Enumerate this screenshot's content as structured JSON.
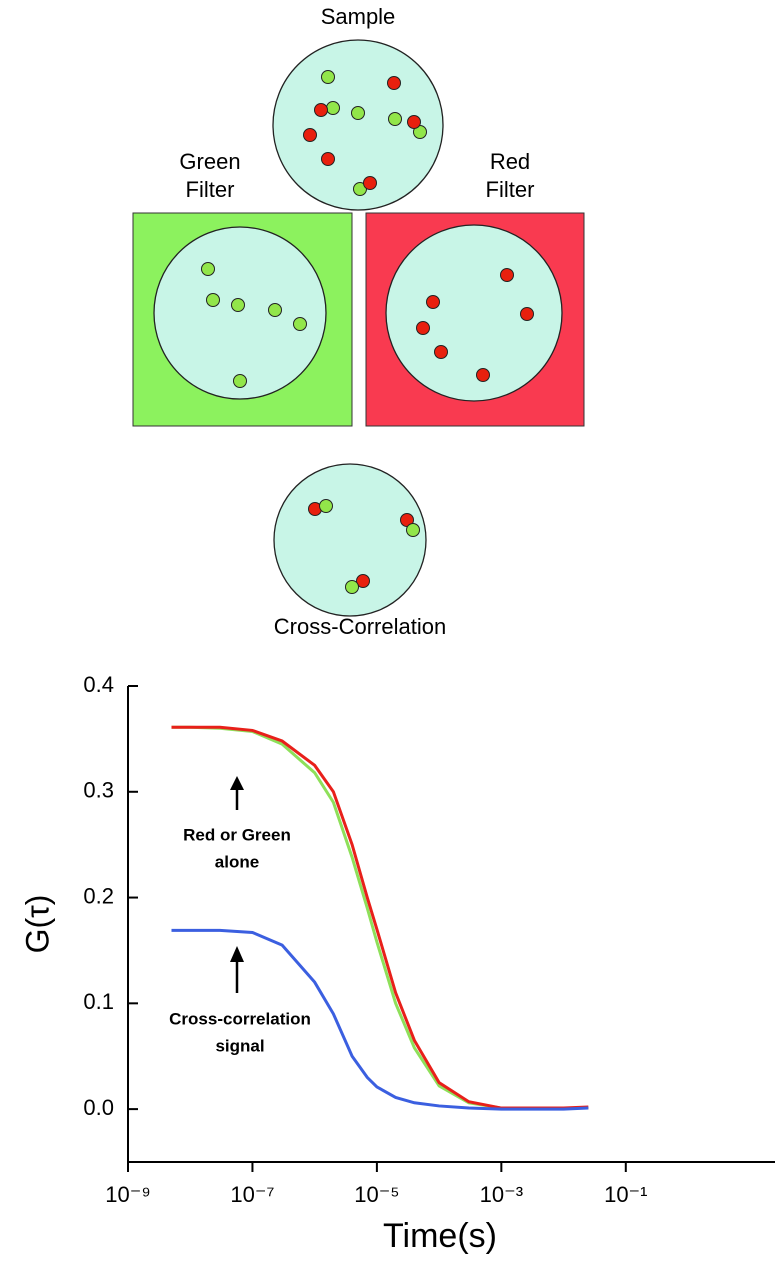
{
  "diagram": {
    "sample": "Sample",
    "green_filter": [
      "Green",
      "Filter"
    ],
    "red_filter": [
      "Red",
      "Filter"
    ],
    "cross_correlation": "Cross-Correlation"
  },
  "chart_data": {
    "type": "line",
    "xscale": "log",
    "xlabel": "Time(s)",
    "ylabel": "G(τ)",
    "xlim": [
      1e-09,
      25
    ],
    "ylim": [
      -0.05,
      0.4
    ],
    "xticks": [
      {
        "value": 1e-09,
        "label": "10⁻⁹"
      },
      {
        "value": 1e-07,
        "label": "10⁻⁷"
      },
      {
        "value": 1e-05,
        "label": "10⁻⁵"
      },
      {
        "value": 0.001,
        "label": "10⁻³"
      },
      {
        "value": 0.1,
        "label": "10⁻¹"
      }
    ],
    "yticks": [
      {
        "value": 0,
        "label": "0.0"
      },
      0.1,
      0.2,
      0.3,
      0.4
    ],
    "x": [
      5e-09,
      1e-08,
      3e-08,
      1e-07,
      3e-07,
      1e-06,
      2e-06,
      4e-06,
      7e-06,
      1e-05,
      2e-05,
      4e-05,
      0.0001,
      0.0003,
      0.001,
      0.01,
      0.025
    ],
    "series": [
      {
        "color": "#8ee05a",
        "values": [
          0.361,
          0.361,
          0.36,
          0.357,
          0.345,
          0.318,
          0.29,
          0.238,
          0.19,
          0.158,
          0.1,
          0.058,
          0.022,
          0.006,
          0.001,
          0.001,
          0.001
        ]
      },
      {
        "color": "#e8201a",
        "values": [
          0.361,
          0.361,
          0.361,
          0.358,
          0.348,
          0.325,
          0.3,
          0.25,
          0.2,
          0.17,
          0.11,
          0.065,
          0.025,
          0.007,
          0.001,
          0.001,
          0.002
        ]
      },
      {
        "color": "#3b5fe0",
        "values": [
          0.169,
          0.169,
          0.169,
          0.167,
          0.155,
          0.12,
          0.09,
          0.05,
          0.03,
          0.021,
          0.011,
          0.006,
          0.003,
          0.001,
          0,
          0,
          0.001
        ]
      }
    ],
    "annotations": [
      {
        "lines": [
          "Red or Green",
          "alone"
        ]
      },
      {
        "lines": [
          "Cross-correlation",
          "signal"
        ]
      }
    ]
  }
}
